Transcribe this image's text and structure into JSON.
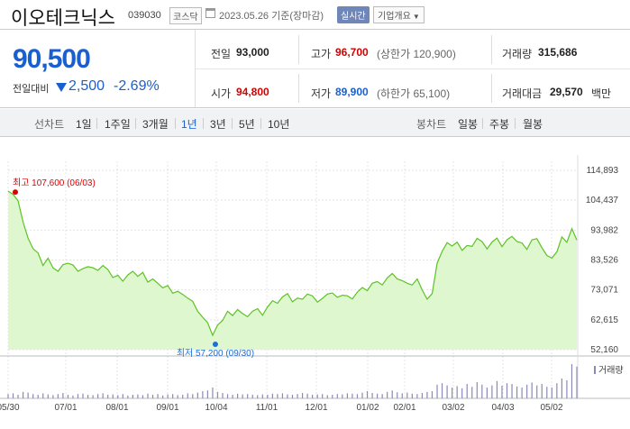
{
  "header": {
    "name": "이오테크닉스",
    "code": "039030",
    "market": "코스닥",
    "date": "2023.05.26  기준(장마감)",
    "realtime": "실시간",
    "company_info": "기업개요"
  },
  "summary": {
    "price": "90,500",
    "change_label": "전일대비",
    "change_amount": "2,500",
    "change_percent": "-2.69%",
    "prev_close_label": "전일",
    "prev_close": "93,000",
    "high_label": "고가",
    "high": "96,700",
    "upper_limit": "(상한가 120,900)",
    "volume_label": "거래량",
    "volume": "315,686",
    "open_label": "시가",
    "open": "94,800",
    "low_label": "저가",
    "low": "89,900",
    "lower_limit": "(하한가 65,100)",
    "amount_label": "거래대금",
    "amount": "29,570",
    "amount_unit": "백만"
  },
  "periods": {
    "line_label": "선차트",
    "items": [
      "1일",
      "1주일",
      "3개월",
      "1년",
      "3년",
      "5년",
      "10년"
    ],
    "selected": "1년",
    "candle_label": "봉차트",
    "candle_items": [
      "일봉",
      "주봉",
      "월봉"
    ]
  },
  "chart_data": {
    "type": "area",
    "y_ticks": [
      "114,893",
      "104,437",
      "93,982",
      "83,526",
      "73,071",
      "62,615",
      "52,160"
    ],
    "ylim": [
      52160,
      114893
    ],
    "x_ticks": [
      "05/30",
      "07/01",
      "08/01",
      "09/01",
      "10/04",
      "11/01",
      "12/01",
      "01/02",
      "02/01",
      "03/02",
      "04/03",
      "05/02"
    ],
    "max_label": "최고 107,600 (06/03)",
    "min_label": "최저 57,200 (09/30)",
    "volume_legend": "거래량",
    "colors": {
      "line": "#5cc323",
      "fill": "#dff7cf",
      "max_dot": "#e00000",
      "min_dot": "#1a6fd8",
      "volume": "#8a8ab8"
    },
    "series": [
      {
        "values": [
          107600,
          106500,
          104200,
          96800,
          91200,
          87500,
          86000,
          81600,
          84200,
          80800,
          79600,
          81900,
          82400,
          81800,
          79600,
          80500,
          81200,
          80800,
          79900,
          81600,
          80200,
          77400,
          78200,
          76100,
          78300,
          79600,
          77800,
          79200,
          75800,
          76900,
          75400,
          73800,
          74600,
          71900,
          72600,
          71500,
          70200,
          69100,
          65600,
          63500,
          61600,
          57200,
          60800,
          62400,
          65600,
          64100,
          66200,
          64800,
          63700,
          65600,
          66500,
          64200,
          67100,
          69300,
          68400,
          70600,
          71800,
          68900,
          70200,
          69800,
          71600,
          71000,
          68800,
          70100,
          71600,
          72000,
          70500,
          71200,
          71000,
          69900,
          72300,
          73900,
          72800,
          75400,
          76000,
          74800,
          77300,
          78800,
          76900,
          76300,
          75400,
          74800,
          76900,
          73100,
          69800,
          71800,
          82400,
          86600,
          89600,
          88400,
          89800,
          86900,
          88600,
          88300,
          91100,
          90000,
          87400,
          89800,
          91200,
          88200,
          90600,
          91800,
          90000,
          89500,
          87200,
          90600,
          91000,
          87800,
          85100,
          84200,
          86400,
          91600,
          89700,
          94500,
          90500
        ]
      }
    ],
    "volume": [
      0.12,
      0.14,
      0.1,
      0.18,
      0.16,
      0.12,
      0.1,
      0.14,
      0.11,
      0.09,
      0.12,
      0.15,
      0.1,
      0.08,
      0.12,
      0.13,
      0.1,
      0.09,
      0.12,
      0.14,
      0.1,
      0.11,
      0.09,
      0.12,
      0.08,
      0.1,
      0.11,
      0.09,
      0.13,
      0.1,
      0.12,
      0.08,
      0.11,
      0.12,
      0.09,
      0.1,
      0.14,
      0.12,
      0.16,
      0.2,
      0.22,
      0.3,
      0.18,
      0.15,
      0.12,
      0.1,
      0.13,
      0.11,
      0.12,
      0.1,
      0.09,
      0.11,
      0.1,
      0.13,
      0.12,
      0.14,
      0.11,
      0.1,
      0.12,
      0.15,
      0.13,
      0.1,
      0.11,
      0.12,
      0.09,
      0.1,
      0.12,
      0.11,
      0.14,
      0.13,
      0.12,
      0.16,
      0.2,
      0.15,
      0.13,
      0.12,
      0.18,
      0.22,
      0.17,
      0.14,
      0.16,
      0.13,
      0.12,
      0.15,
      0.18,
      0.2,
      0.38,
      0.42,
      0.36,
      0.3,
      0.34,
      0.28,
      0.4,
      0.32,
      0.45,
      0.38,
      0.3,
      0.36,
      0.48,
      0.35,
      0.42,
      0.4,
      0.33,
      0.3,
      0.38,
      0.44,
      0.36,
      0.4,
      0.32,
      0.3,
      0.42,
      0.55,
      0.5,
      0.95,
      0.88
    ]
  }
}
